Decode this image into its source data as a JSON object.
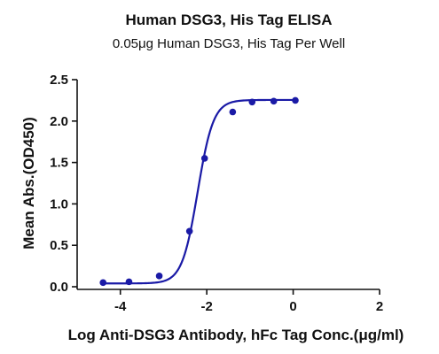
{
  "chart_data": {
    "type": "scatter",
    "title": "Human DSG3, His Tag ELISA",
    "subtitle": "0.05μg Human DSG3, His Tag Per Well",
    "xlabel": "Log Anti-DSG3 Antibody, hFc Tag Conc.(μg/ml)",
    "ylabel": "Mean Abs.(OD450)",
    "xlim": [
      -5,
      2
    ],
    "ylim": [
      0,
      2.5
    ],
    "xticks": [
      -4,
      -2,
      0,
      2
    ],
    "yticks": [
      0.0,
      0.5,
      1.0,
      1.5,
      2.0,
      2.5
    ],
    "xtick_labels": [
      "-4",
      "-2",
      "0",
      "2"
    ],
    "ytick_labels": [
      "0.0",
      "0.5",
      "1.0",
      "1.5",
      "2.0",
      "2.5"
    ],
    "grid": false,
    "fit": "sigmoidal",
    "color": "#1a1aa6",
    "series": [
      {
        "x": [
          -4.4,
          -3.8,
          -3.1,
          -2.4,
          -2.05,
          -1.4,
          -0.95,
          -0.45,
          0.05
        ],
        "y": [
          0.05,
          0.06,
          0.13,
          0.67,
          1.55,
          2.11,
          2.23,
          2.24,
          2.25
        ]
      }
    ]
  }
}
